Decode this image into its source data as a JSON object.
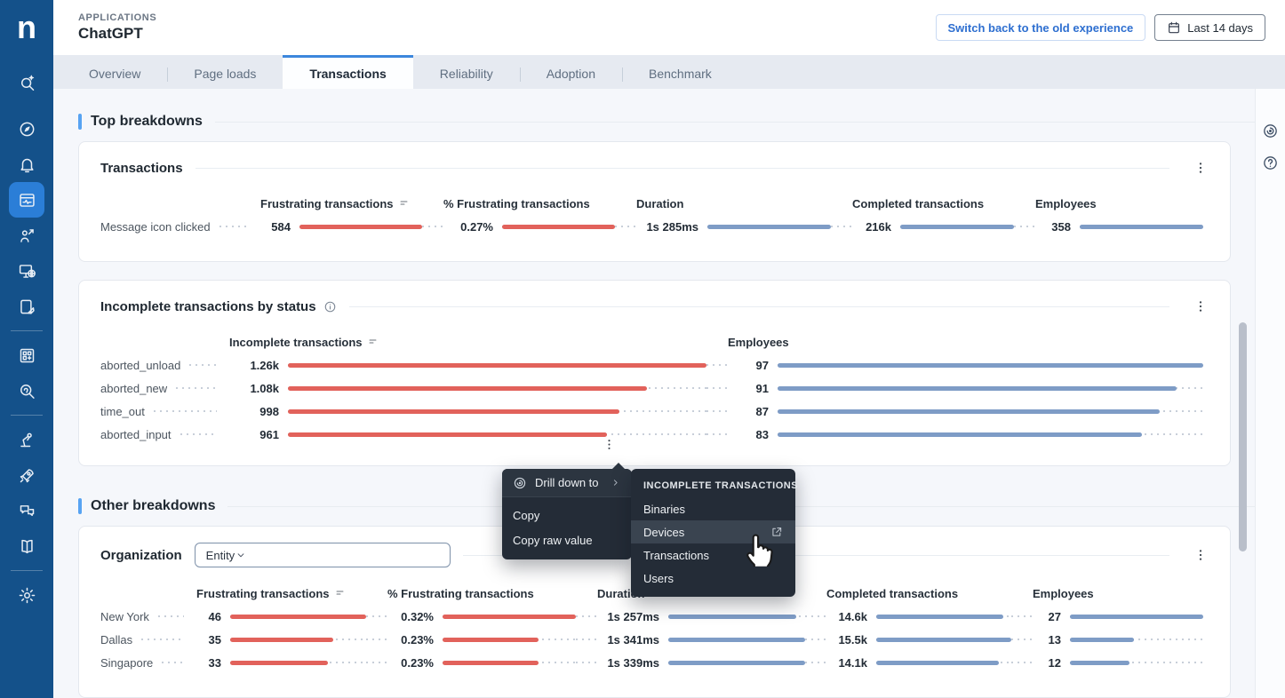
{
  "brand": {
    "logo_letter": "n"
  },
  "header": {
    "eyebrow": "APPLICATIONS",
    "title": "ChatGPT",
    "switch_button": "Switch back to the old experience",
    "time_picker": "Last 14 days",
    "time_picker_icon": "calendar-icon"
  },
  "tabs": [
    {
      "label": "Overview",
      "active": false
    },
    {
      "label": "Page loads",
      "active": false
    },
    {
      "label": "Transactions",
      "active": true
    },
    {
      "label": "Reliability",
      "active": false
    },
    {
      "label": "Adoption",
      "active": false
    },
    {
      "label": "Benchmark",
      "active": false
    }
  ],
  "sidebar": {
    "items": [
      {
        "icon": "search-sparkle",
        "slot": "search"
      },
      {
        "icon": "compass"
      },
      {
        "icon": "bell"
      },
      {
        "icon": "browser-monitor",
        "active": true
      },
      {
        "icon": "user-analytics"
      },
      {
        "icon": "monitor-globe"
      },
      {
        "icon": "tablet-pen"
      },
      {
        "divider": true
      },
      {
        "icon": "apps-grid"
      },
      {
        "icon": "query-magnifier"
      },
      {
        "divider": true
      },
      {
        "icon": "robot-arm"
      },
      {
        "icon": "rocket"
      },
      {
        "icon": "chat-bubbles"
      },
      {
        "icon": "book"
      },
      {
        "divider": true
      },
      {
        "icon": "gear"
      }
    ]
  },
  "right_rail": {
    "icons": [
      "drilldown",
      "help"
    ]
  },
  "sections": [
    {
      "title": "Top breakdowns"
    },
    {
      "title": "Other breakdowns"
    }
  ],
  "chart_data": [
    {
      "type": "table",
      "id": "transactions",
      "title": "Transactions",
      "columns": [
        {
          "label": "Frustrating transactions",
          "sorted": true
        },
        {
          "label": "% Frustrating transactions"
        },
        {
          "label": "Duration"
        },
        {
          "label": "Completed transactions"
        },
        {
          "label": "Employees"
        }
      ],
      "rows": [
        {
          "label": "Message icon clicked",
          "cells": [
            {
              "text": "584",
              "num": 584,
              "color": "red"
            },
            {
              "text": "0.27%",
              "num": 0.27,
              "color": "red"
            },
            {
              "text": "1s 285ms",
              "num": 1285,
              "color": "blue"
            },
            {
              "text": "216k",
              "num": 216000,
              "color": "blue"
            },
            {
              "text": "358",
              "num": 358,
              "color": "blue"
            }
          ]
        }
      ]
    },
    {
      "type": "table",
      "id": "incomplete",
      "title": "Incomplete transactions by status",
      "info_icon": true,
      "columns": [
        {
          "label": "Incomplete transactions",
          "sorted": true
        },
        {
          "label": "Employees"
        }
      ],
      "rows": [
        {
          "label": "aborted_unload",
          "cells": [
            {
              "text": "1.26k",
              "num": 1260,
              "color": "red"
            },
            {
              "text": "97",
              "num": 97,
              "color": "blue"
            }
          ]
        },
        {
          "label": "aborted_new",
          "cells": [
            {
              "text": "1.08k",
              "num": 1080,
              "color": "red"
            },
            {
              "text": "91",
              "num": 91,
              "color": "blue"
            }
          ]
        },
        {
          "label": "time_out",
          "cells": [
            {
              "text": "998",
              "num": 998,
              "color": "red"
            },
            {
              "text": "87",
              "num": 87,
              "color": "blue"
            }
          ]
        },
        {
          "label": "aborted_input",
          "cells": [
            {
              "text": "961",
              "num": 961,
              "color": "red"
            },
            {
              "text": "83",
              "num": 83,
              "color": "blue"
            }
          ]
        }
      ]
    },
    {
      "type": "table",
      "id": "organization",
      "title": "Organization",
      "entity_select": "Entity",
      "columns": [
        {
          "label": "Frustrating transactions",
          "sorted": true
        },
        {
          "label": "% Frustrating transactions"
        },
        {
          "label": "Duration"
        },
        {
          "label": "Completed transactions"
        },
        {
          "label": "Employees"
        }
      ],
      "rows": [
        {
          "label": "New York",
          "cells": [
            {
              "text": "46",
              "num": 46,
              "color": "red"
            },
            {
              "text": "0.32%",
              "num": 0.32,
              "color": "red"
            },
            {
              "text": "1s 257ms",
              "num": 1257,
              "color": "blue"
            },
            {
              "text": "14.6k",
              "num": 14600,
              "color": "blue"
            },
            {
              "text": "27",
              "num": 27,
              "color": "blue"
            }
          ]
        },
        {
          "label": "Dallas",
          "cells": [
            {
              "text": "35",
              "num": 35,
              "color": "red"
            },
            {
              "text": "0.23%",
              "num": 0.23,
              "color": "red"
            },
            {
              "text": "1s 341ms",
              "num": 1341,
              "color": "blue"
            },
            {
              "text": "15.5k",
              "num": 15500,
              "color": "blue"
            },
            {
              "text": "13",
              "num": 13,
              "color": "blue"
            }
          ]
        },
        {
          "label": "Singapore",
          "cells": [
            {
              "text": "33",
              "num": 33,
              "color": "red"
            },
            {
              "text": "0.23%",
              "num": 0.23,
              "color": "red"
            },
            {
              "text": "1s 339ms",
              "num": 1339,
              "color": "blue"
            },
            {
              "text": "14.1k",
              "num": 14100,
              "color": "blue"
            },
            {
              "text": "12",
              "num": 12,
              "color": "blue"
            }
          ]
        }
      ]
    }
  ],
  "context_menu": {
    "items": [
      {
        "label": "Drill down to",
        "icon": "drilldown",
        "has_submenu": true
      },
      {
        "label": "Copy"
      },
      {
        "label": "Copy raw value"
      }
    ],
    "submenu": {
      "header": "INCOMPLETE TRANSACTIONS",
      "items": [
        {
          "label": "Binaries"
        },
        {
          "label": "Devices",
          "highlighted": true,
          "external_icon": true
        },
        {
          "label": "Transactions"
        },
        {
          "label": "Users"
        }
      ]
    }
  },
  "cursor_icon": "hand-pointer",
  "colors": {
    "sidebar": "#14518a",
    "sidebar_active": "#2b7ed7",
    "tab_active_border": "#3c87dc",
    "bar_red": "#e2625b",
    "bar_blue": "#7e9cc6",
    "menu_bg": "#242c37",
    "accent": "#57a3f2"
  }
}
